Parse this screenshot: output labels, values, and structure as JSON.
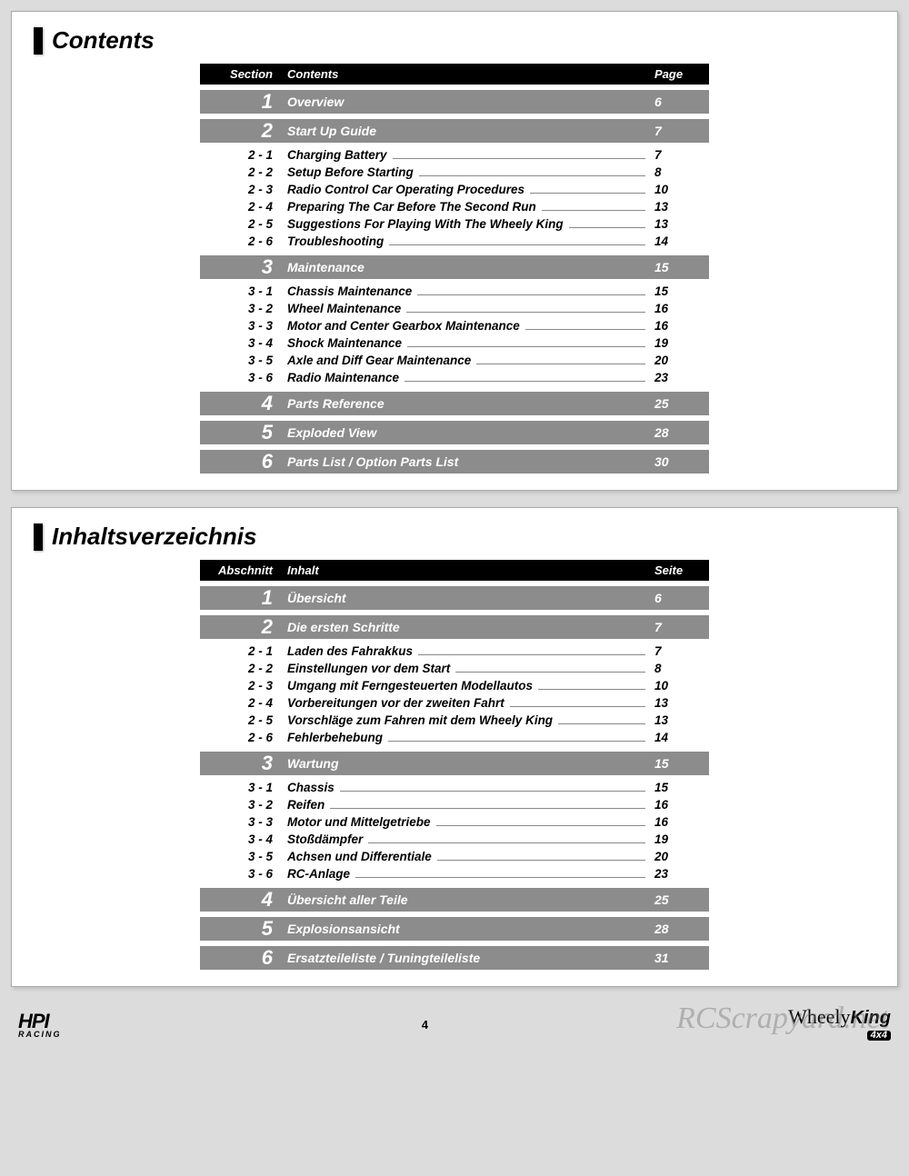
{
  "colors": {
    "page_bg": "#dcdcdc",
    "panel_bg": "#ffffff",
    "header_bg": "#000000",
    "section_bg": "#8c8c8c",
    "text": "#000000",
    "header_text": "#ffffff",
    "leader": "#888888"
  },
  "typography": {
    "title_fontsize": 26,
    "section_num_fontsize": 22,
    "row_fontsize": 13.5,
    "font_style": "italic",
    "font_weight": "bold"
  },
  "panels": [
    {
      "title": "Contents",
      "headers": {
        "section": "Section",
        "content": "Contents",
        "page": "Page"
      },
      "sections": [
        {
          "num": "1",
          "label": "Overview",
          "page": "6",
          "subs": []
        },
        {
          "num": "2",
          "label": "Start Up Guide",
          "page": "7",
          "subs": [
            {
              "num": "2 - 1",
              "label": "Charging Battery",
              "page": "7"
            },
            {
              "num": "2 - 2",
              "label": "Setup Before Starting",
              "page": "8"
            },
            {
              "num": "2 - 3",
              "label": "Radio Control Car Operating Procedures",
              "page": "10"
            },
            {
              "num": "2 - 4",
              "label": "Preparing The Car Before The Second Run",
              "page": "13"
            },
            {
              "num": "2 - 5",
              "label": "Suggestions For Playing With The Wheely King",
              "page": "13"
            },
            {
              "num": "2 - 6",
              "label": "Troubleshooting",
              "page": "14"
            }
          ]
        },
        {
          "num": "3",
          "label": "Maintenance",
          "page": "15",
          "subs": [
            {
              "num": "3 - 1",
              "label": "Chassis Maintenance",
              "page": "15"
            },
            {
              "num": "3 - 2",
              "label": "Wheel Maintenance",
              "page": "16"
            },
            {
              "num": "3 - 3",
              "label": "Motor and Center Gearbox Maintenance",
              "page": "16"
            },
            {
              "num": "3 - 4",
              "label": "Shock Maintenance",
              "page": "19"
            },
            {
              "num": "3 - 5",
              "label": "Axle and Diff Gear Maintenance",
              "page": "20"
            },
            {
              "num": "3 - 6",
              "label": "Radio Maintenance",
              "page": "23"
            }
          ]
        },
        {
          "num": "4",
          "label": "Parts Reference",
          "page": "25",
          "subs": []
        },
        {
          "num": "5",
          "label": "Exploded View",
          "page": "28",
          "subs": []
        },
        {
          "num": "6",
          "label": "Parts List / Option Parts List",
          "page": "30",
          "subs": []
        }
      ]
    },
    {
      "title": "Inhaltsverzeichnis",
      "headers": {
        "section": "Abschnitt",
        "content": "Inhalt",
        "page": "Seite"
      },
      "sections": [
        {
          "num": "1",
          "label": "Übersicht",
          "page": "6",
          "subs": []
        },
        {
          "num": "2",
          "label": "Die ersten Schritte",
          "page": "7",
          "subs": [
            {
              "num": "2 - 1",
              "label": "Laden des Fahrakkus",
              "page": "7"
            },
            {
              "num": "2 - 2",
              "label": "Einstellungen vor dem Start",
              "page": "8"
            },
            {
              "num": "2 - 3",
              "label": "Umgang mit Ferngesteuerten Modellautos",
              "page": "10"
            },
            {
              "num": "2 - 4",
              "label": "Vorbereitungen vor der zweiten Fahrt",
              "page": "13"
            },
            {
              "num": "2 - 5",
              "label": "Vorschläge zum Fahren mit dem Wheely King",
              "page": "13"
            },
            {
              "num": "2 - 6",
              "label": "Fehlerbehebung",
              "page": "14"
            }
          ]
        },
        {
          "num": "3",
          "label": "Wartung",
          "page": "15",
          "subs": [
            {
              "num": "3 - 1",
              "label": "Chassis",
              "page": "15"
            },
            {
              "num": "3 - 2",
              "label": "Reifen",
              "page": "16"
            },
            {
              "num": "3 - 3",
              "label": "Motor und Mittelgetriebe",
              "page": "16"
            },
            {
              "num": "3 - 4",
              "label": "Stoßdämpfer",
              "page": "19"
            },
            {
              "num": "3 - 5",
              "label": "Achsen und Differentiale",
              "page": "20"
            },
            {
              "num": "3 - 6",
              "label": "RC-Anlage",
              "page": "23"
            }
          ]
        },
        {
          "num": "4",
          "label": "Übersicht aller Teile",
          "page": "25",
          "subs": []
        },
        {
          "num": "5",
          "label": "Explosionsansicht",
          "page": "28",
          "subs": []
        },
        {
          "num": "6",
          "label": "Ersatzteileliste / Tuningteileliste",
          "page": "31",
          "subs": []
        }
      ]
    }
  ],
  "footer": {
    "left_logo_main": "HPI",
    "left_logo_sub": "RACING",
    "page_number": "4",
    "right_logo_1": "Wheely",
    "right_logo_2": "King",
    "right_logo_tag": "4x4"
  },
  "watermark": "RCScrapyard.net"
}
